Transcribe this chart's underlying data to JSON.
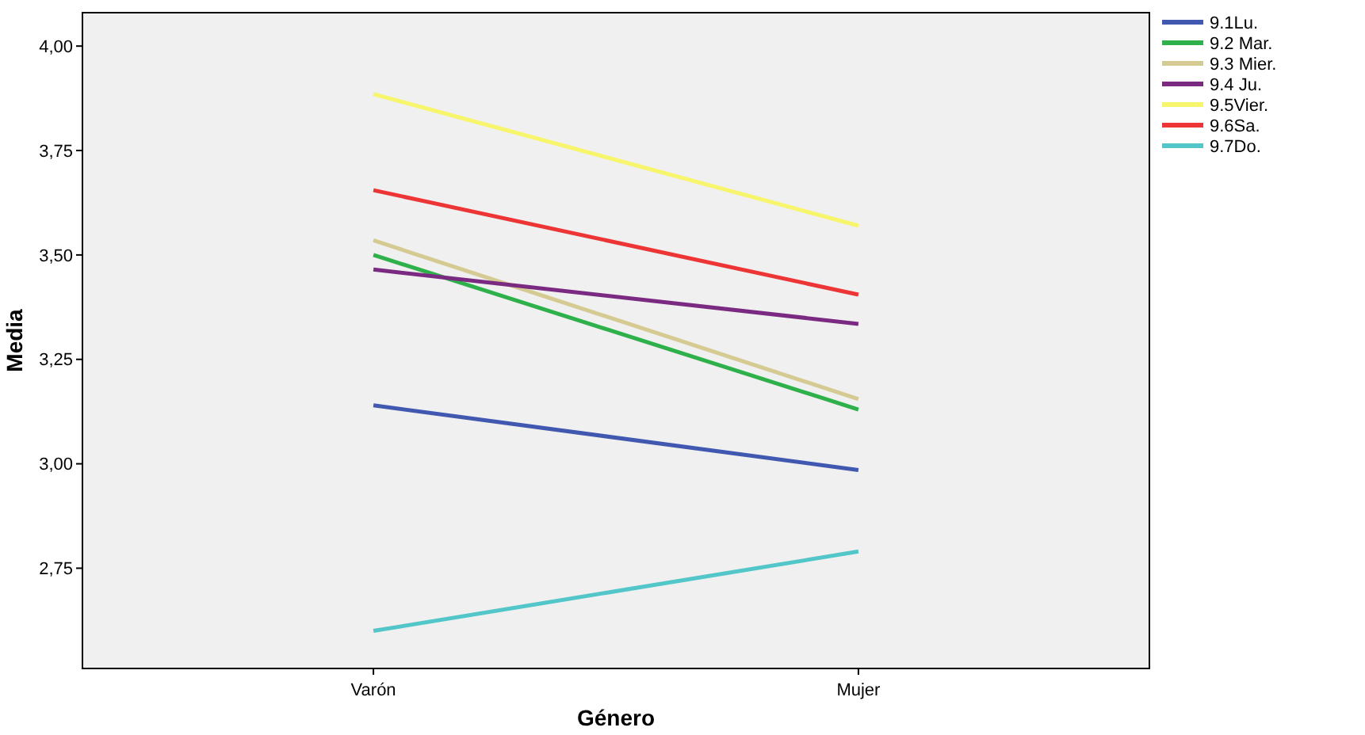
{
  "chart_data": {
    "type": "line",
    "xlabel": "Género",
    "ylabel": "Media",
    "categories": [
      "Varón",
      "Mujer"
    ],
    "series": [
      {
        "name": "9.1Lu.",
        "color": "#4058b0",
        "values": [
          3.14,
          2.985
        ]
      },
      {
        "name": "9.2 Mar.",
        "color": "#2eb04a",
        "values": [
          3.5,
          3.13
        ]
      },
      {
        "name": "9.3 Mier.",
        "color": "#d4ca92",
        "values": [
          3.535,
          3.155
        ]
      },
      {
        "name": "9.4 Ju.",
        "color": "#7a2a80",
        "values": [
          3.465,
          3.335
        ]
      },
      {
        "name": "9.5Vier.",
        "color": "#f7f56c",
        "values": [
          3.885,
          3.57
        ]
      },
      {
        "name": "9.6Sa.",
        "color": "#ee3535",
        "values": [
          3.655,
          3.405
        ]
      },
      {
        "name": "9.7Do.",
        "color": "#52c6c8",
        "values": [
          2.6,
          2.79
        ]
      }
    ],
    "ylim": [
      2.51,
      4.08
    ],
    "yticks": [
      {
        "value": 2.75,
        "label": "2,75"
      },
      {
        "value": 3,
        "label": "3,00"
      },
      {
        "value": 3.25,
        "label": "3,25"
      },
      {
        "value": 3.5,
        "label": "3,50"
      },
      {
        "value": 3.75,
        "label": "3,75"
      },
      {
        "value": 4,
        "label": "4,00"
      }
    ],
    "grid": false,
    "legend": "top right",
    "marker": "none",
    "line_style": "solid"
  }
}
